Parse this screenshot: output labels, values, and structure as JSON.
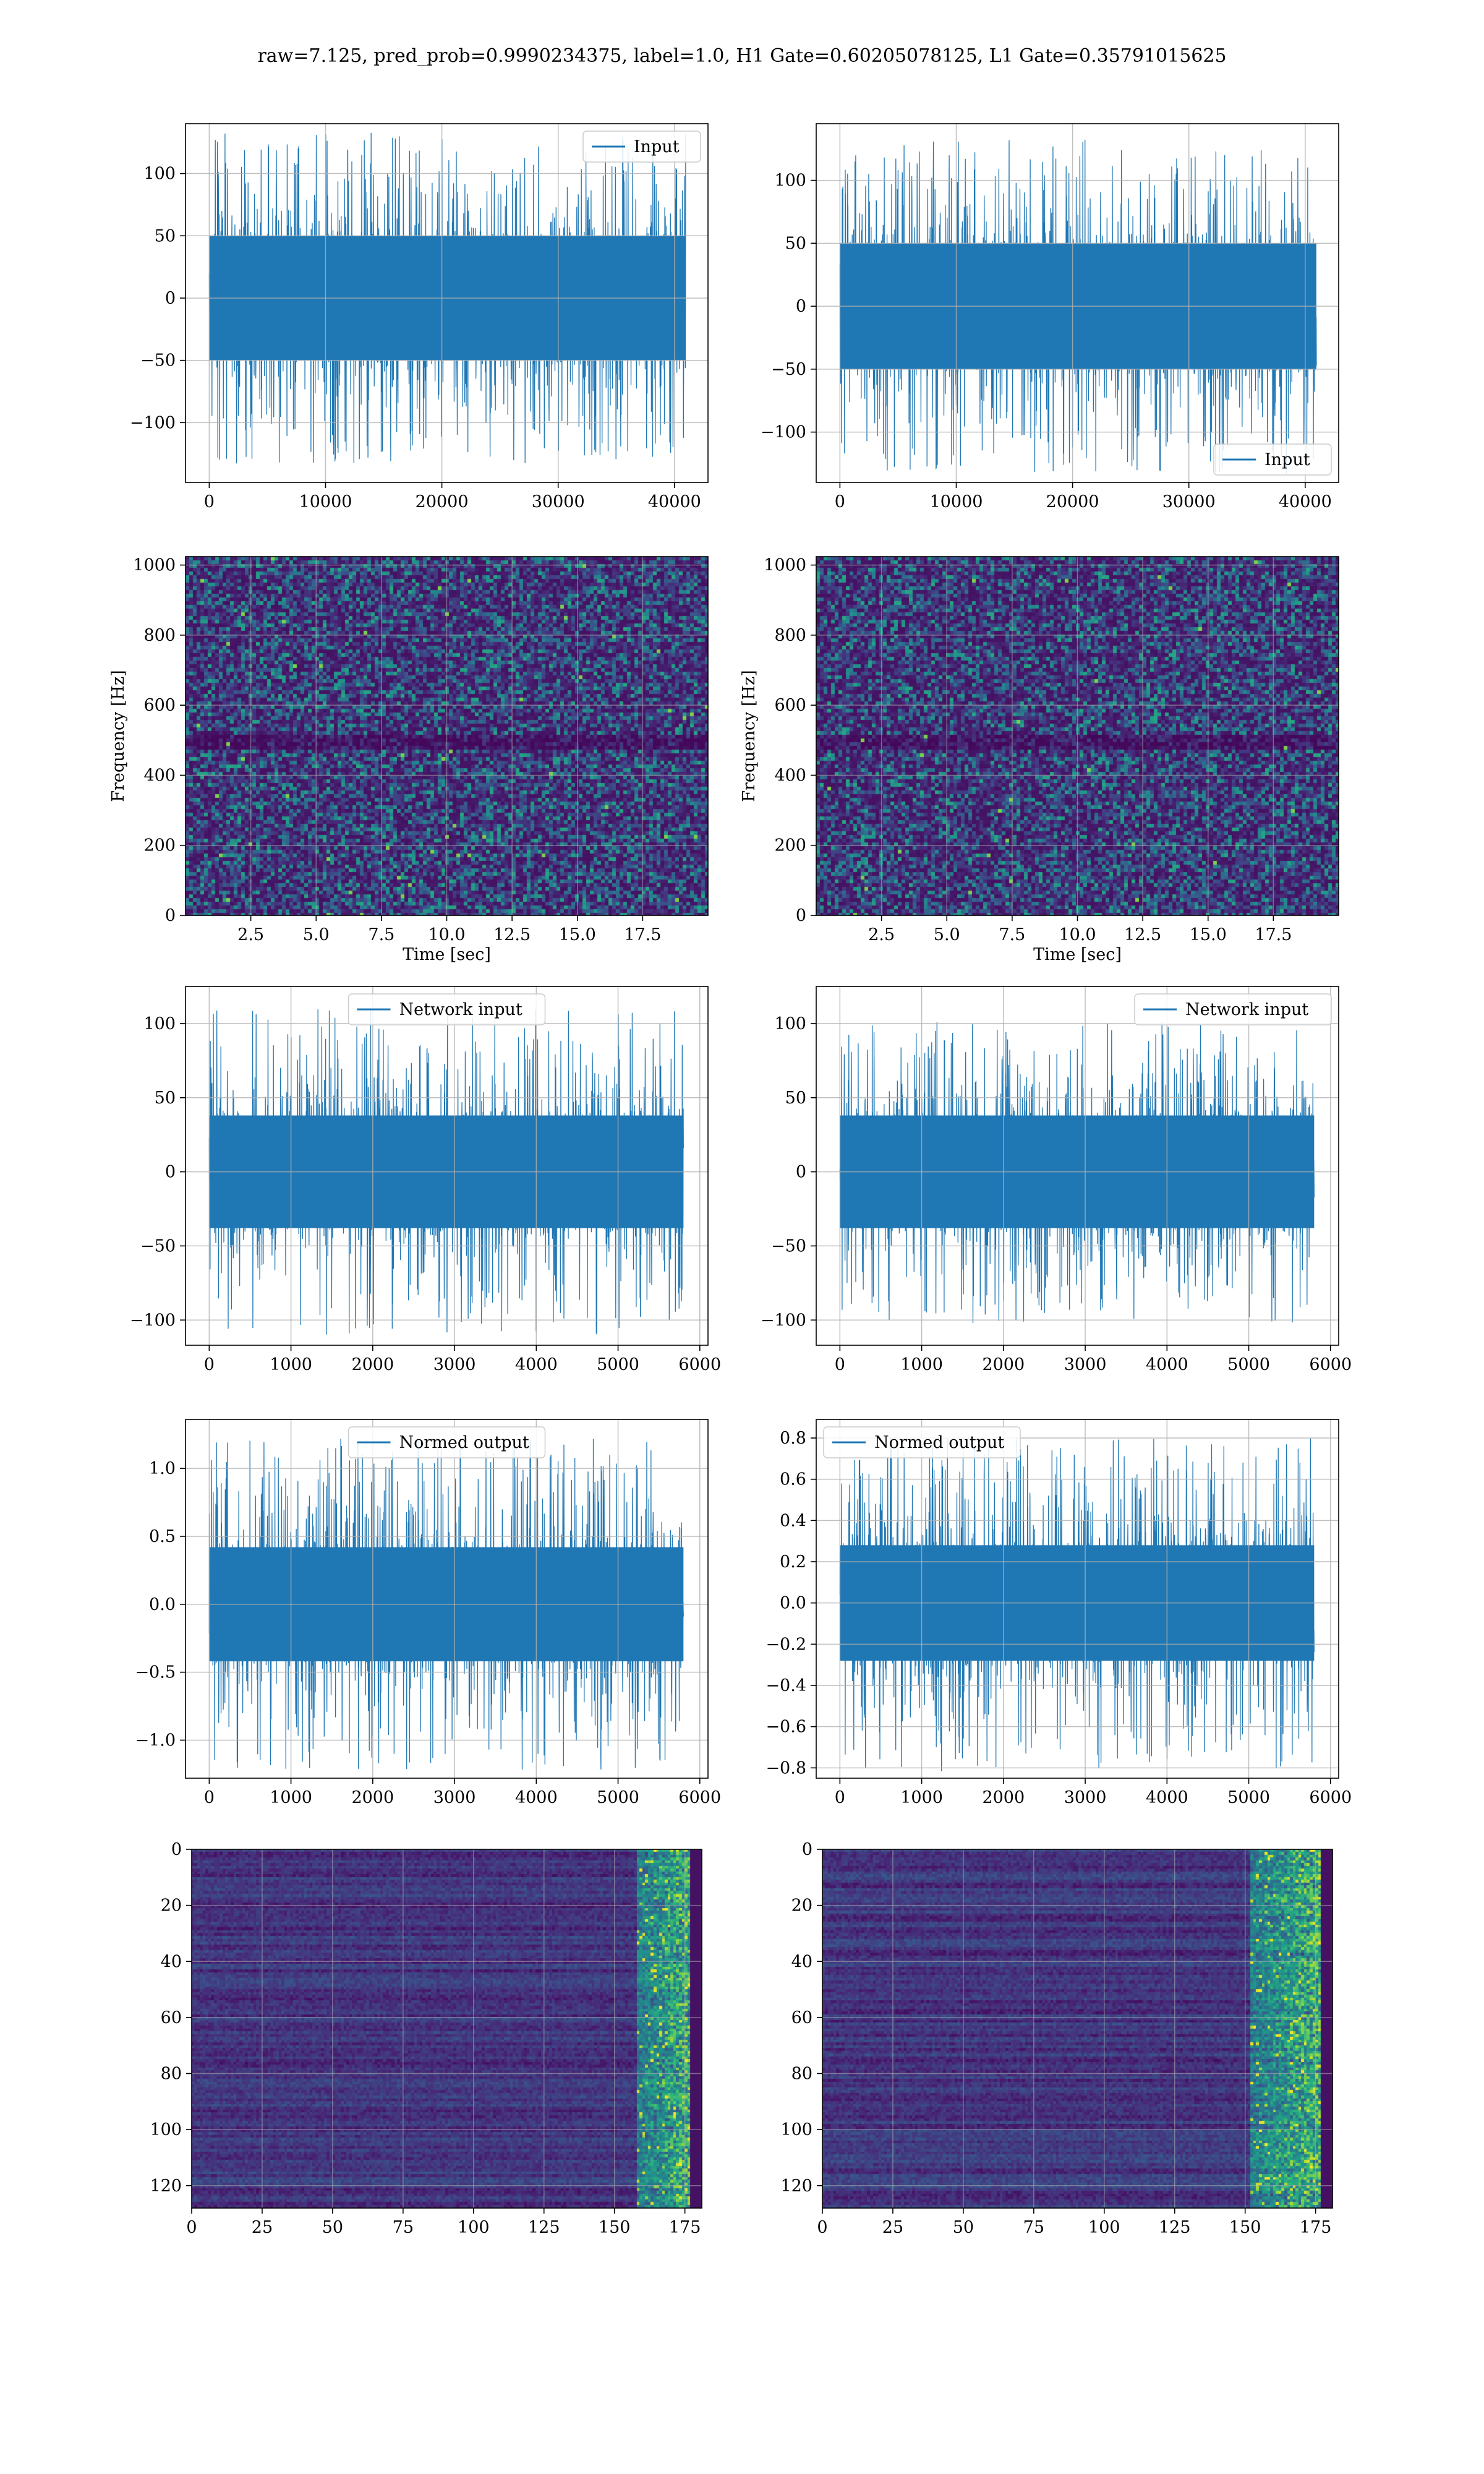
{
  "figure": {
    "title": "raw=7.125, pred_prob=0.9990234375, label=1.0, H1 Gate=0.60205078125, L1 Gate=0.35791015625"
  },
  "colors": {
    "line": "#1f77b4",
    "grid": "#b0b0b0",
    "viridis": [
      "#440154",
      "#472d7b",
      "#3b528b",
      "#2c728e",
      "#21918c",
      "#28ae80",
      "#5ec962",
      "#addc30",
      "#fde725"
    ]
  },
  "chart_data": [
    {
      "id": "r1-left",
      "type": "line",
      "legend": "Input",
      "legend_loc": "upper right",
      "xlim": [
        -2040,
        42880
      ],
      "ylim": [
        -148,
        140
      ],
      "xticks": [
        0,
        10000,
        20000,
        30000,
        40000
      ],
      "yticks": [
        -100,
        -50,
        0,
        50,
        100
      ],
      "series": [
        {
          "name": "Input",
          "n_samples": 40960,
          "amplitude_core": 50,
          "amplitude_peak": 133
        }
      ]
    },
    {
      "id": "r1-right",
      "type": "line",
      "legend": "Input",
      "legend_loc": "lower right",
      "xlim": [
        -2040,
        42880
      ],
      "ylim": [
        -140,
        145
      ],
      "xticks": [
        0,
        10000,
        20000,
        30000,
        40000
      ],
      "yticks": [
        -100,
        -50,
        0,
        50,
        100
      ],
      "series": [
        {
          "name": "Input",
          "n_samples": 40960,
          "amplitude_core": 50,
          "amplitude_peak": 133
        }
      ]
    },
    {
      "id": "r2-left",
      "type": "heatmap",
      "colormap": "viridis",
      "xlim": [
        0,
        20
      ],
      "ylim": [
        0,
        1024
      ],
      "xticks": [
        2.5,
        5.0,
        7.5,
        10.0,
        12.5,
        15.0,
        17.5
      ],
      "yticks": [
        0,
        200,
        400,
        600,
        800,
        1000
      ],
      "xlabel": "Time [sec]",
      "ylabel": "Frequency [Hz]"
    },
    {
      "id": "r2-right",
      "type": "heatmap",
      "colormap": "viridis",
      "xlim": [
        0,
        20
      ],
      "ylim": [
        0,
        1024
      ],
      "xticks": [
        2.5,
        5.0,
        7.5,
        10.0,
        12.5,
        15.0,
        17.5
      ],
      "yticks": [
        0,
        200,
        400,
        600,
        800,
        1000
      ],
      "xlabel": "Time [sec]",
      "ylabel": "Frequency [Hz]"
    },
    {
      "id": "r3-left",
      "type": "line",
      "legend": "Network input",
      "legend_loc": "upper center",
      "xlim": [
        -290,
        6100
      ],
      "ylim": [
        -117,
        125
      ],
      "xticks": [
        0,
        1000,
        2000,
        3000,
        4000,
        5000,
        6000
      ],
      "yticks": [
        -100,
        -50,
        0,
        50,
        100
      ],
      "series": [
        {
          "name": "Network input",
          "n_samples": 5800,
          "amplitude_core": 38,
          "amplitude_peak": 110
        }
      ]
    },
    {
      "id": "r3-right",
      "type": "line",
      "legend": "Network input",
      "legend_loc": "upper right",
      "xlim": [
        -290,
        6100
      ],
      "ylim": [
        -117,
        125
      ],
      "xticks": [
        0,
        1000,
        2000,
        3000,
        4000,
        5000,
        6000
      ],
      "yticks": [
        -100,
        -50,
        0,
        50,
        100
      ],
      "series": [
        {
          "name": "Network input",
          "n_samples": 5800,
          "amplitude_core": 38,
          "amplitude_peak": 102
        }
      ]
    },
    {
      "id": "r4-left",
      "type": "line",
      "legend": "Normed output",
      "legend_loc": "upper center",
      "xlim": [
        -290,
        6100
      ],
      "ylim": [
        -1.28,
        1.36
      ],
      "xticks": [
        0,
        1000,
        2000,
        3000,
        4000,
        5000,
        6000
      ],
      "yticks": [
        -1.0,
        -0.5,
        0.0,
        0.5,
        1.0
      ],
      "series": [
        {
          "name": "Normed output",
          "n_samples": 5800,
          "amplitude_core": 0.42,
          "amplitude_peak": 1.22
        }
      ]
    },
    {
      "id": "r4-right",
      "type": "line",
      "legend": "Normed output",
      "legend_loc": "upper left",
      "xlim": [
        -290,
        6100
      ],
      "ylim": [
        -0.85,
        0.89
      ],
      "xticks": [
        0,
        1000,
        2000,
        3000,
        4000,
        5000,
        6000
      ],
      "yticks": [
        -0.8,
        -0.6,
        -0.4,
        -0.2,
        0.0,
        0.2,
        0.4,
        0.6,
        0.8
      ],
      "series": [
        {
          "name": "Normed output",
          "n_samples": 5800,
          "amplitude_core": 0.28,
          "amplitude_peak": 0.82
        }
      ]
    },
    {
      "id": "r5-left",
      "type": "heatmap",
      "colormap": "viridis",
      "xlim": [
        0,
        181
      ],
      "ylim": [
        128,
        0
      ],
      "xticks": [
        0,
        25,
        50,
        75,
        100,
        125,
        150,
        175
      ],
      "yticks": [
        0,
        20,
        40,
        60,
        80,
        100,
        120
      ],
      "hot_columns": [
        158,
        181
      ]
    },
    {
      "id": "r5-right",
      "type": "heatmap",
      "colormap": "viridis",
      "xlim": [
        0,
        181
      ],
      "ylim": [
        128,
        0
      ],
      "xticks": [
        0,
        25,
        50,
        75,
        100,
        125,
        150,
        175
      ],
      "yticks": [
        0,
        20,
        40,
        60,
        80,
        100,
        120
      ],
      "hot_columns": [
        152,
        181
      ]
    }
  ]
}
